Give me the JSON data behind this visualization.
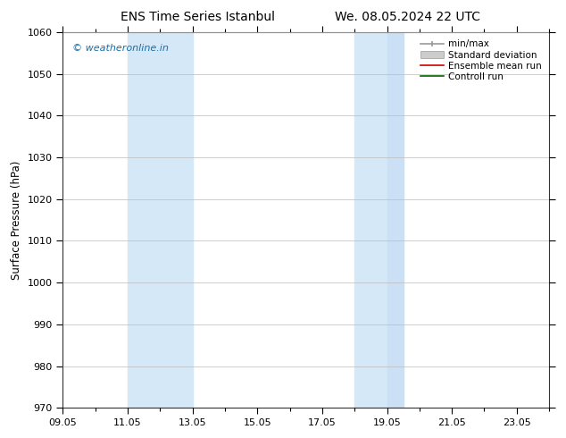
{
  "title_left": "ENS Time Series Istanbul",
  "title_right": "We. 08.05.2024 22 UTC",
  "ylabel": "Surface Pressure (hPa)",
  "ylim": [
    970,
    1060
  ],
  "yticks": [
    970,
    980,
    990,
    1000,
    1010,
    1020,
    1030,
    1040,
    1050,
    1060
  ],
  "xlim_start": 0,
  "xlim_end": 15,
  "xtick_labels": [
    "09.05",
    "11.05",
    "13.05",
    "15.05",
    "17.05",
    "19.05",
    "21.05",
    "23.05"
  ],
  "xtick_positions": [
    0,
    2,
    4,
    6,
    8,
    10,
    12,
    14
  ],
  "shaded_bands": [
    {
      "xmin": 2.0,
      "xmax": 4.0
    },
    {
      "xmin": 9.0,
      "xmax": 10.0
    },
    {
      "xmin": 10.0,
      "xmax": 11.0
    }
  ],
  "shade_color": "#ddeeff",
  "shade_color2": "#cce0f5",
  "background_color": "#ffffff",
  "plot_bg_color": "#ffffff",
  "watermark_text": "© weatheronline.in",
  "watermark_color": "#1a6fa8",
  "legend_entries": [
    "min/max",
    "Standard deviation",
    "Ensemble mean run",
    "Controll run"
  ],
  "legend_line_color": "#aaaaaa",
  "legend_patch_color": "#cccccc",
  "legend_red": "#cc0000",
  "legend_green": "#006600",
  "grid_color": "#bbbbbb",
  "axis_color": "#333333",
  "title_fontsize": 10,
  "tick_fontsize": 8,
  "ylabel_fontsize": 8.5
}
